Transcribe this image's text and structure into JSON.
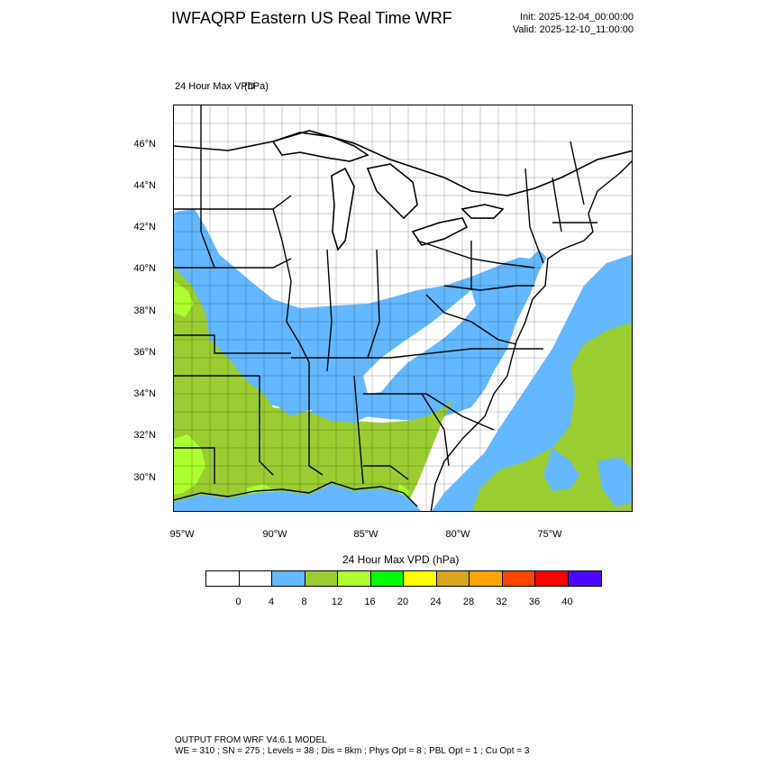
{
  "header": {
    "title": "IWFAQRP Eastern US Real Time WRF",
    "init": "Init: 2025-12-04_00:00:00",
    "valid": "Valid: 2025-12-10_11:00:00"
  },
  "field": {
    "label": "24 Hour Max VPD",
    "units": "(hPa)"
  },
  "map": {
    "lat_labels": [
      "46°N",
      "44°N",
      "42°N",
      "40°N",
      "38°N",
      "36°N",
      "34°N",
      "32°N",
      "30°N"
    ],
    "lon_labels": [
      "95°W",
      "90°W",
      "85°W",
      "80°W",
      "75°W"
    ],
    "colors": {
      "land_low": "#ffffff",
      "blue": "#63b8ff",
      "green": "#9acd32",
      "light_green": "#adff2f",
      "ocean_blue": "#63b8ff",
      "ocean_green": "#9acd32",
      "lakes": "#ffffff",
      "borders": "#000000"
    }
  },
  "colorbar": {
    "title": "24 Hour Max VPD  (hPa)",
    "colors": [
      "#ffffff",
      "#ffffff",
      "#63b8ff",
      "#9acd32",
      "#adff2f",
      "#00ff00",
      "#ffff00",
      "#daa520",
      "#ffa500",
      "#ff4500",
      "#ff0000",
      "#4b0aff"
    ],
    "ticks": [
      "0",
      "4",
      "8",
      "12",
      "16",
      "20",
      "24",
      "28",
      "32",
      "36",
      "40"
    ]
  },
  "footer": {
    "line1": "OUTPUT FROM WRF V4.6.1 MODEL",
    "line2": "WE = 310 ; SN = 275 ; Levels = 38 ; Dis = 8km ; Phys Opt = 8 ; PBL Opt = 1 ; Cu Opt = 3"
  }
}
